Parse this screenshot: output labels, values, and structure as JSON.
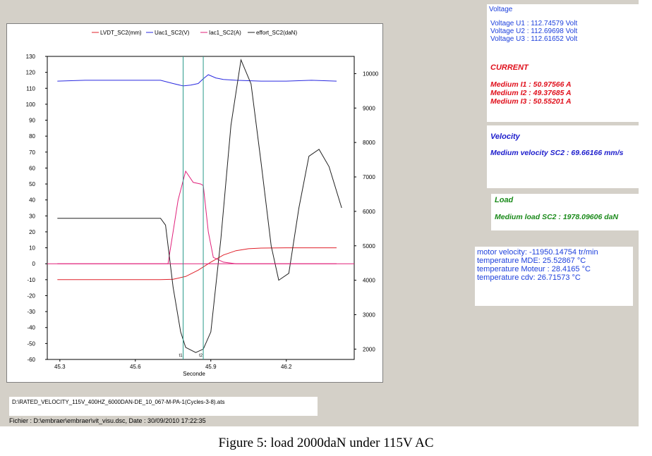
{
  "voltage": {
    "title": "Voltage",
    "u1": "Voltage U1 : 112.74579 Volt",
    "u2": "Voltage U2 : 112.69698 Volt",
    "u3": "Voltage U3 : 112.61652 Volt"
  },
  "current": {
    "title": "CURRENT",
    "i1": "Medium I1 : 50.97566 A",
    "i2": "Medium I2 : 49.37685 A",
    "i3": "Medium I3 : 50.55201 A"
  },
  "velocity": {
    "title": "Velocity",
    "value": "Medium velocity SC2 : 69.66166 mm/s"
  },
  "load": {
    "title": "Load",
    "value": "Medium load SC2 : 1978.09606  daN"
  },
  "motor": {
    "velocity": "motor velocity: -11950.14754 tr/min",
    "temp_mde": "temperature MDE: 25.52867  °C",
    "temp_moteur": "temperature Moteur : 28.4165  °C",
    "temp_cdv": "temperature cdv: 26.71573  °C"
  },
  "file_path": "D:\\RATED_VELOCITY_115V_400HZ_6000DAN-DE_10_067-M-PA-1(Cycles-3-8).ats",
  "status": "Fichier :  D:\\embraer\\embraer\\vit_visu.dsc, Date :  30/09/2010 17:22:35",
  "caption": "Figure 5:  load 2000daN under 115V AC",
  "colors": {
    "lvdt": "#e0202a",
    "uac": "#2a2ae0",
    "iac": "#e0207a",
    "effort": "#202020",
    "cursor": "#2a9a8a",
    "current_text": "#e0101c",
    "velocity_text": "#1c1ccc",
    "load_text": "#1a8a1a"
  },
  "chart_data": {
    "type": "line",
    "xlabel": "Seconde",
    "x_ticks": [
      "45.3",
      "45.6",
      "45.9",
      "46.2"
    ],
    "x_tick_values": [
      45.3,
      45.6,
      45.9,
      46.2
    ],
    "xlim": [
      45.25,
      46.47
    ],
    "ylim_left": [
      -60,
      130
    ],
    "y_left_ticks": [
      "130",
      "120",
      "110",
      "100",
      "90",
      "80",
      "70",
      "60",
      "50",
      "40",
      "30",
      "20",
      "10",
      "0",
      "-10",
      "-20",
      "-30",
      "-40",
      "-50",
      "-60"
    ],
    "ylim_right": [
      1700,
      10500
    ],
    "y_right_ticks": [
      "10000",
      "9000",
      "8000",
      "7000",
      "6000",
      "5000",
      "4000",
      "3000",
      "2000"
    ],
    "cursors": [
      45.79,
      45.87
    ],
    "cursor_labels": [
      "t1",
      "t2"
    ],
    "legend": [
      "LVDT_SC2(mm)",
      "Uac1_SC2(V)",
      "Iac1_SC2(A)",
      "effort_SC2(daN)"
    ],
    "series": [
      {
        "name": "LVDT_SC2(mm)",
        "axis": "left",
        "x": [
          45.29,
          45.5,
          45.7,
          45.75,
          45.8,
          45.85,
          45.9,
          45.95,
          46.0,
          46.05,
          46.1,
          46.2,
          46.3,
          46.4
        ],
        "y": [
          -10,
          -10,
          -10,
          -9.7,
          -8,
          -4,
          1,
          5.5,
          8.2,
          9.4,
          9.8,
          10,
          10,
          10
        ]
      },
      {
        "name": "Uac1_SC2(V)",
        "axis": "left",
        "x": [
          45.29,
          45.4,
          45.5,
          45.6,
          45.7,
          45.75,
          45.79,
          45.82,
          45.85,
          45.87,
          45.89,
          45.92,
          45.95,
          46.0,
          46.1,
          46.2,
          46.3,
          46.4
        ],
        "y": [
          114.5,
          115,
          115,
          115,
          115,
          113,
          111.5,
          112,
          113,
          116,
          118.5,
          116.5,
          115.5,
          115,
          114.5,
          114.5,
          115,
          114.5
        ]
      },
      {
        "name": "Iac1_SC2(A)",
        "axis": "left",
        "x": [
          45.29,
          45.5,
          45.73,
          45.75,
          45.77,
          45.79,
          45.8,
          45.83,
          45.86,
          45.87,
          45.89,
          45.91,
          45.95,
          46.0,
          46.1,
          46.4
        ],
        "y": [
          0,
          0,
          0,
          20,
          40,
          52,
          58,
          51,
          50,
          49,
          20,
          4,
          1,
          0,
          0,
          0
        ]
      },
      {
        "name": "effort_SC2(daN)",
        "axis": "right",
        "x": [
          45.29,
          45.4,
          45.5,
          45.6,
          45.7,
          45.72,
          45.75,
          45.78,
          45.8,
          45.84,
          45.87,
          45.9,
          45.94,
          45.98,
          46.02,
          46.06,
          46.1,
          46.14,
          46.17,
          46.21,
          46.25,
          46.29,
          46.33,
          46.37,
          46.42
        ],
        "y": [
          5800,
          5800,
          5800,
          5800,
          5800,
          5600,
          3800,
          2500,
          2050,
          1900,
          2000,
          2500,
          5200,
          8500,
          10400,
          9700,
          7400,
          5000,
          4000,
          4200,
          6100,
          7600,
          7800,
          7300,
          6100
        ]
      }
    ]
  }
}
